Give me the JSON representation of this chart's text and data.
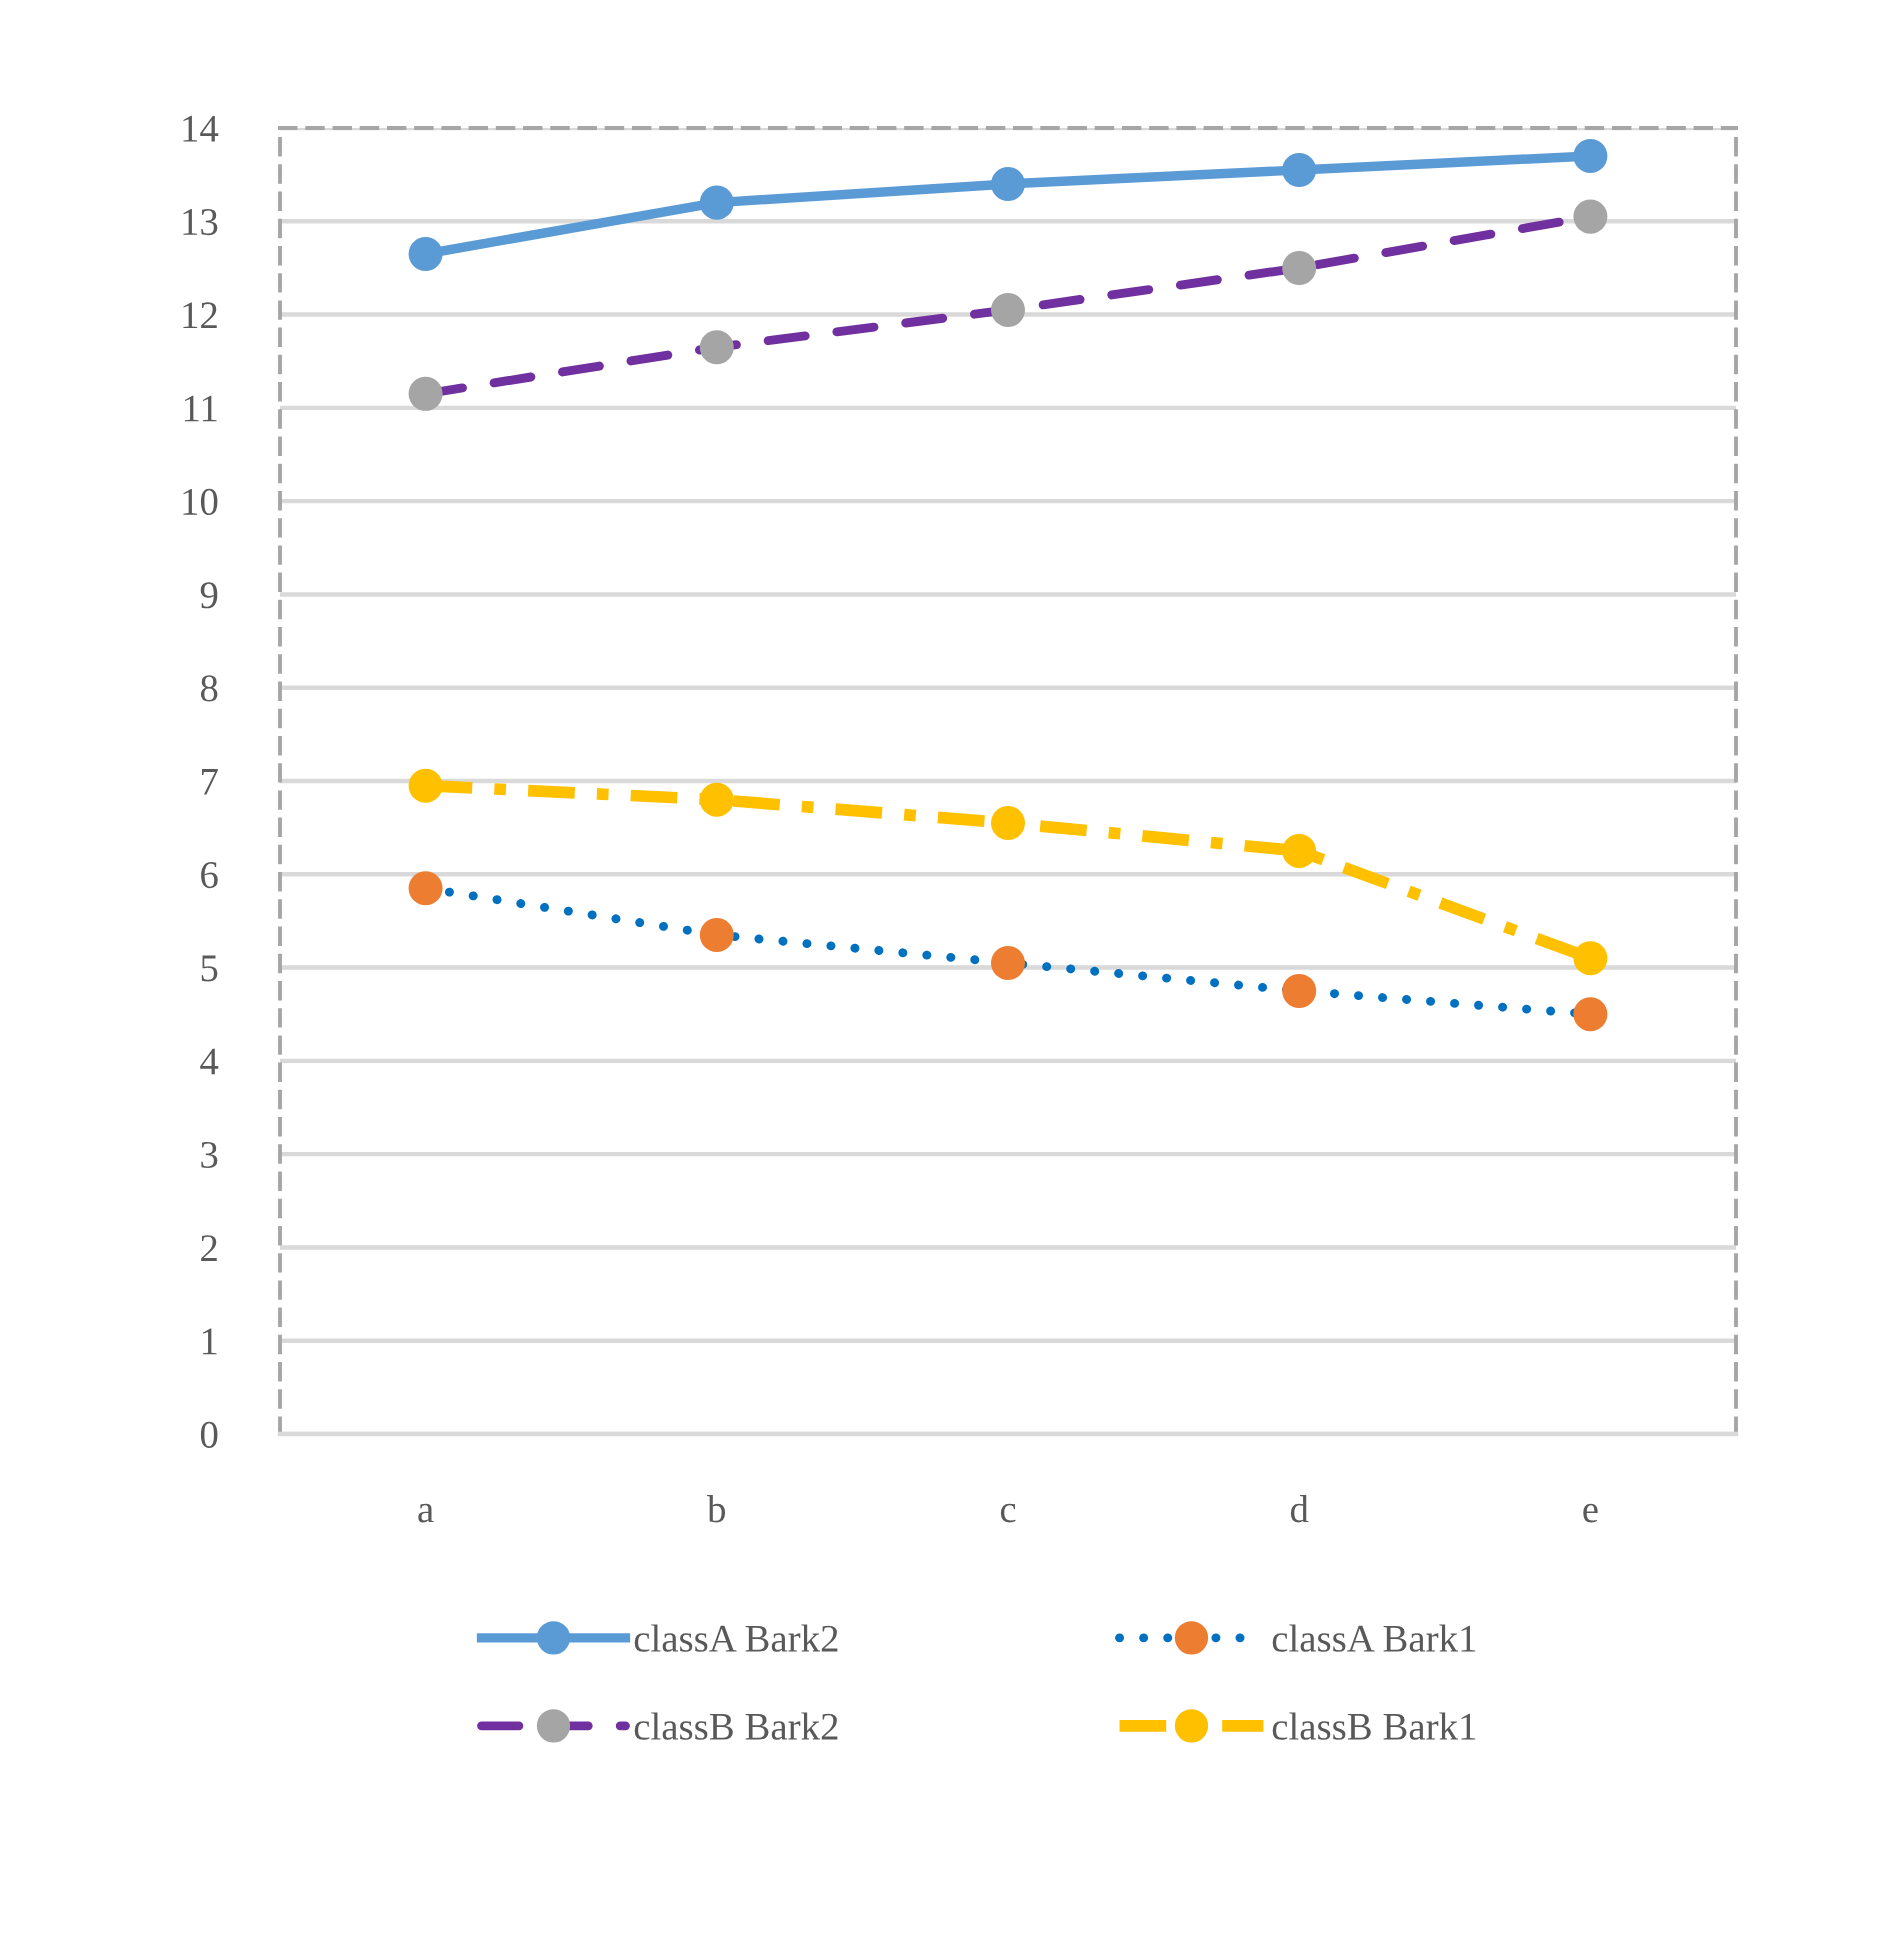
{
  "chart_data": {
    "type": "line",
    "categories": [
      "a",
      "b",
      "c",
      "d",
      "e"
    ],
    "ylim": [
      0,
      14
    ],
    "yticks": [
      0,
      1,
      2,
      3,
      4,
      5,
      6,
      7,
      8,
      9,
      10,
      11,
      12,
      13,
      14
    ],
    "grid": "y",
    "legend": "bottom",
    "marker": "circle",
    "series": [
      {
        "name": "classA Bark2",
        "color": "#5b9bd5",
        "colors": [
          "#5b9bd5",
          "#5b9bd5",
          "#5b9bd5",
          "#5b9bd5",
          "#5b9bd5"
        ],
        "line_style": "solid",
        "values": [
          12.65,
          13.2,
          13.4,
          13.55,
          13.7
        ]
      },
      {
        "name": "classA Bark1",
        "color": "#0070c0",
        "colors": [
          "#ed7d31",
          "#ed7d31",
          "#ed7d31",
          "#ed7d31",
          "#ed7d31"
        ],
        "line_style": "dotted",
        "values": [
          5.85,
          5.35,
          5.05,
          4.75,
          4.5
        ]
      },
      {
        "name": "classB Bark2",
        "color": "#7030a0",
        "colors": [
          "#a5a5a5",
          "#a5a5a5",
          "#a5a5a5",
          "#a5a5a5",
          "#a5a5a5"
        ],
        "line_style": "dashed",
        "values": [
          11.15,
          11.65,
          12.05,
          12.5,
          13.05
        ]
      },
      {
        "name": "classB Bark1",
        "color": "#ffc000",
        "colors": [
          "#ffc000",
          "#ffc000",
          "#ffc000",
          "#ffc000",
          "#ffc000"
        ],
        "line_style": "dashdot",
        "values": [
          6.95,
          6.8,
          6.55,
          6.25,
          5.1
        ]
      }
    ]
  }
}
